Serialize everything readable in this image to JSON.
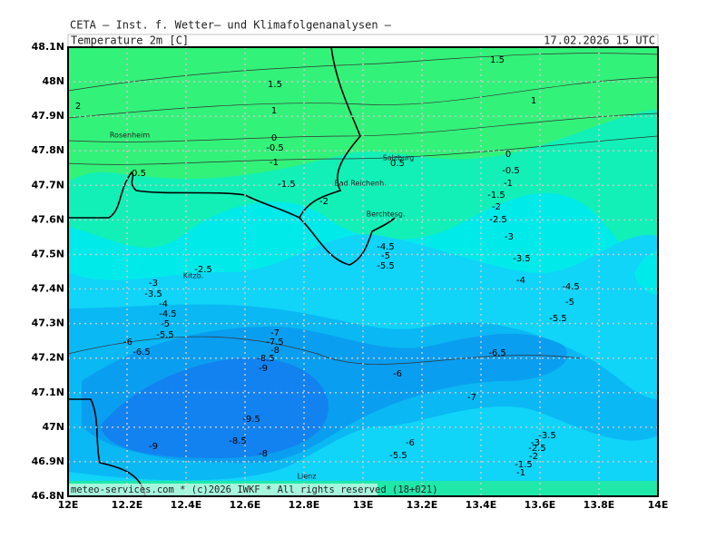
{
  "header": {
    "title": "CETA — Inst. f. Wetter— und Klimafolgenanalysen —",
    "variable": "Temperature_2m_[C]",
    "valid": "17.02.2026 15 UTC"
  },
  "footer": "meteo-services.com * (c)2026 IWKF * All rights reserved (18+021)",
  "x_axis": {
    "ticks": [
      "12E",
      "12.2E",
      "12.4E",
      "12.6E",
      "12.8E",
      "13E",
      "13.2E",
      "13.4E",
      "13.6E",
      "13.8E",
      "14E"
    ]
  },
  "y_axis": {
    "ticks": [
      "48.1N",
      "48N",
      "47.9N",
      "47.8N",
      "47.7N",
      "47.6N",
      "47.5N",
      "47.4N",
      "47.3N",
      "47.2N",
      "47.1N",
      "47N",
      "46.9N",
      "46.8N"
    ]
  },
  "places": [
    "Rosenheim",
    "Salzburg",
    "Bad Reichenh.",
    "Berchtesg.",
    "Kitzb.",
    "Lienz"
  ],
  "contour_labels": [
    "1.5",
    "1.5",
    "1",
    "1",
    "2",
    "0",
    "-0.5",
    "-1",
    "-1.5",
    "-2",
    "0.5",
    "0.5",
    "0",
    "-0.5",
    "-1",
    "-1.5",
    "-2",
    "-2.5",
    "-3",
    "-3.5",
    "-4",
    "-4.5",
    "-5",
    "-5.5",
    "-4.5",
    "-5",
    "-5.5",
    "-2.5",
    "-3",
    "-3.5",
    "-4",
    "-4.5",
    "-5",
    "-5.5",
    "-6",
    "-6.5",
    "-7",
    "-7.5",
    "-8",
    "-8.5",
    "-9",
    "-6",
    "-6.5",
    "-7",
    "-9.5",
    "-9",
    "-8.5",
    "-8",
    "-6",
    "-5.5",
    "-3.5",
    "-3",
    "-2.5",
    "-2",
    "-1.5",
    "-1"
  ]
}
